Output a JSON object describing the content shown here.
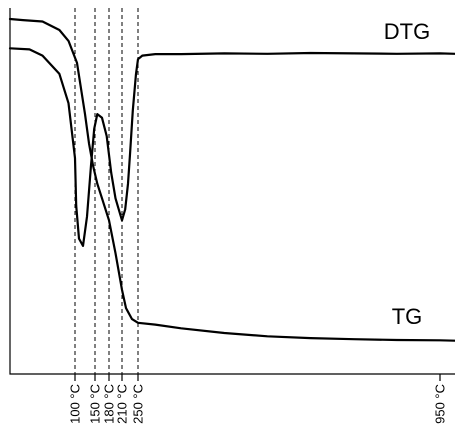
{
  "chart_data": {
    "type": "line",
    "title": "",
    "xlabel": "",
    "ylabel": "",
    "grid": false,
    "legend": "none",
    "xlim": [
      50,
      1000
    ],
    "x_ticks": [
      {
        "value": 100,
        "label": "100 °C"
      },
      {
        "value": 150,
        "label": "150 °C"
      },
      {
        "value": 180,
        "label": "180 °C"
      },
      {
        "value": 210,
        "label": "210 °C"
      },
      {
        "value": 250,
        "label": "250 °C"
      },
      {
        "value": 950,
        "label": "950 °C"
      }
    ],
    "reference_lines": [
      100,
      150,
      180,
      210,
      250
    ],
    "series": [
      {
        "name": "DTG",
        "color": "#000000",
        "x": [
          50,
          65,
          75,
          88,
          95,
          100,
          103,
          110,
          120,
          130,
          140,
          148,
          155,
          165,
          175,
          185,
          195,
          205,
          210,
          218,
          225,
          230,
          237,
          245,
          250,
          260,
          290,
          350,
          450,
          550,
          650,
          750,
          850,
          950,
          1000
        ],
        "y": [
          0.89,
          0.887,
          0.87,
          0.82,
          0.74,
          0.59,
          0.46,
          0.37,
          0.35,
          0.43,
          0.57,
          0.67,
          0.71,
          0.7,
          0.65,
          0.55,
          0.48,
          0.44,
          0.42,
          0.45,
          0.52,
          0.6,
          0.72,
          0.82,
          0.86,
          0.87,
          0.874,
          0.874,
          0.876,
          0.875,
          0.877,
          0.876,
          0.875,
          0.876,
          0.875
        ]
      },
      {
        "name": "TG",
        "color": "#000000",
        "x": [
          50,
          60,
          75,
          88,
          95,
          105,
          115,
          125,
          135,
          145,
          155,
          165,
          180,
          195,
          210,
          220,
          235,
          250,
          290,
          350,
          450,
          550,
          650,
          750,
          850,
          950,
          1000
        ],
        "y": [
          0.97,
          0.967,
          0.963,
          0.94,
          0.91,
          0.85,
          0.78,
          0.71,
          0.63,
          0.57,
          0.52,
          0.48,
          0.42,
          0.33,
          0.23,
          0.18,
          0.15,
          0.14,
          0.135,
          0.125,
          0.112,
          0.103,
          0.098,
          0.095,
          0.093,
          0.092,
          0.091
        ]
      }
    ],
    "labels": {
      "dtg": "DTG",
      "tg": "TG"
    }
  }
}
